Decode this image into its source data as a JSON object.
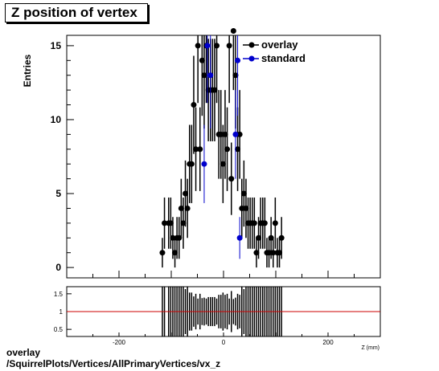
{
  "title": "Z position of vertex",
  "footer": {
    "line1": "overlay",
    "line2": "/SquirrelPlots/Vertices/AllPrimaryVertices/vx_z"
  },
  "chart_data": [
    {
      "type": "scatter",
      "ylabel": "Entries",
      "xlim": [
        -300,
        300
      ],
      "ylim": [
        -0.7,
        15.7
      ],
      "x_ticks": [
        -200,
        0,
        200
      ],
      "y_ticks": [
        0,
        5,
        10,
        15
      ],
      "legend": {
        "placement": "top-right",
        "entries": [
          "overlay",
          "standard"
        ]
      },
      "series": [
        {
          "name": "overlay",
          "color": "#000000",
          "x": [
            -117,
            -113,
            -105,
            -101,
            -97,
            -93,
            -89,
            -85,
            -81,
            -77,
            -73,
            -69,
            -65,
            -61,
            -57,
            -53,
            -49,
            -45,
            -41,
            -37,
            -33,
            -29,
            -25,
            -21,
            -17,
            -13,
            -9,
            -5,
            -1,
            3,
            7,
            11,
            15,
            19,
            23,
            27,
            31,
            35,
            39,
            43,
            47,
            51,
            55,
            59,
            63,
            67,
            71,
            75,
            79,
            83,
            87,
            91,
            95,
            99,
            103,
            107,
            111
          ],
          "y": [
            1,
            3,
            3,
            3,
            2,
            1,
            2,
            2,
            4,
            3,
            5,
            4,
            7,
            7,
            11,
            8,
            15,
            8,
            14,
            13,
            15,
            12,
            12,
            12,
            12,
            15,
            9,
            9,
            7,
            9,
            8,
            15,
            6,
            16,
            13,
            8,
            9,
            4,
            5,
            4,
            3,
            3,
            3,
            3,
            1,
            2,
            3,
            3,
            3,
            1,
            1,
            2,
            1,
            3,
            1,
            1,
            2
          ]
        },
        {
          "name": "standard",
          "color": "#0000cc",
          "x": [
            -37,
            -31,
            -25,
            23,
            27,
            31
          ],
          "y": [
            7,
            15,
            13,
            9,
            14,
            2
          ]
        }
      ]
    },
    {
      "type": "scatter",
      "xlabel": "Z (mm)",
      "xlim": [
        -300,
        300
      ],
      "ylim": [
        0.3,
        1.7
      ],
      "x_ticks": [
        -200,
        0,
        200
      ],
      "y_ticks": [
        0.5,
        1,
        1.5
      ],
      "reference_line": 1,
      "reference_color": "#cc0000"
    }
  ]
}
